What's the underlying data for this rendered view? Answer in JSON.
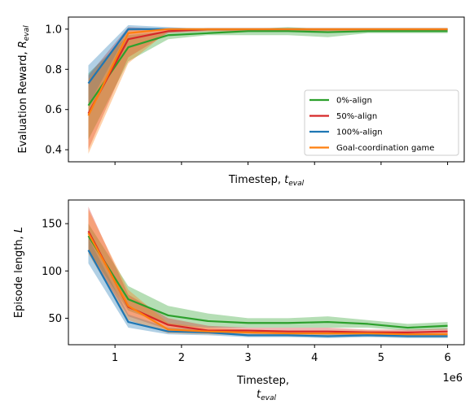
{
  "chart_data": [
    {
      "type": "line",
      "panel": "top",
      "ylabel_main": "Evaluation Reward, ",
      "ylabel_var": "R",
      "ylabel_sub": "eval",
      "xlabel_main": "Timestep, ",
      "xlabel_var": "t",
      "xlabel_sub": "eval",
      "xlim": [
        0.3,
        6.25
      ],
      "ylim": [
        0.34,
        1.06
      ],
      "yticks": [
        0.4,
        0.6,
        0.8,
        1.0
      ],
      "ytick_labels": [
        "0.4",
        "0.6",
        "0.8",
        "1.0"
      ],
      "xticks": [
        1,
        2,
        3,
        4,
        5,
        6
      ],
      "show_xtick_labels": false,
      "grid": false,
      "legend_position": "lower-right",
      "series": [
        {
          "name": "0%-align",
          "color": "#2ca02c",
          "x": [
            0.6,
            1.2,
            1.8,
            2.4,
            3.0,
            3.6,
            4.2,
            4.8,
            5.4,
            6.0
          ],
          "y": [
            0.62,
            0.91,
            0.97,
            0.98,
            0.99,
            0.99,
            0.985,
            0.99,
            0.99,
            0.99
          ],
          "lower": [
            0.45,
            0.84,
            0.95,
            0.97,
            0.97,
            0.97,
            0.96,
            0.98,
            0.98,
            0.98
          ],
          "upper": [
            0.78,
            0.97,
            0.99,
            1.0,
            1.0,
            1.01,
            1.0,
            1.0,
            1.0,
            1.0
          ]
        },
        {
          "name": "50%-align",
          "color": "#d62728",
          "x": [
            0.6,
            1.2,
            1.8,
            2.4,
            3.0,
            3.6,
            4.2,
            4.8,
            5.4,
            6.0
          ],
          "y": [
            0.58,
            0.95,
            0.99,
            1.0,
            1.0,
            1.0,
            1.0,
            1.0,
            1.0,
            1.0
          ],
          "lower": [
            0.4,
            0.86,
            0.98,
            0.99,
            0.99,
            0.99,
            0.99,
            0.99,
            0.99,
            0.99
          ],
          "upper": [
            0.77,
            1.01,
            1.0,
            1.0,
            1.0,
            1.0,
            1.0,
            1.0,
            1.0,
            1.0
          ]
        },
        {
          "name": "100%-align",
          "color": "#1f77b4",
          "x": [
            0.6,
            1.2,
            1.8,
            2.4,
            3.0,
            3.6,
            4.2,
            4.8,
            5.4,
            6.0
          ],
          "y": [
            0.73,
            1.0,
            1.0,
            1.0,
            1.0,
            1.0,
            1.0,
            1.0,
            1.0,
            1.0
          ],
          "lower": [
            0.62,
            0.99,
            1.0,
            1.0,
            1.0,
            1.0,
            1.0,
            1.0,
            1.0,
            1.0
          ],
          "upper": [
            0.82,
            1.02,
            1.01,
            1.0,
            1.0,
            1.0,
            1.0,
            1.0,
            1.0,
            1.0
          ]
        },
        {
          "name": "Goal-coordination game",
          "color": "#ff7f0e",
          "x": [
            0.6,
            1.2,
            1.8,
            2.4,
            3.0,
            3.6,
            4.2,
            4.8,
            5.4,
            6.0
          ],
          "y": [
            0.57,
            0.98,
            1.0,
            1.0,
            1.0,
            1.0,
            1.0,
            1.0,
            1.0,
            1.0
          ],
          "lower": [
            0.38,
            0.83,
            0.99,
            0.99,
            0.99,
            0.99,
            0.99,
            0.99,
            0.99,
            0.99
          ],
          "upper": [
            0.75,
            1.0,
            1.0,
            1.0,
            1.0,
            1.0,
            1.0,
            1.0,
            1.0,
            1.0
          ]
        }
      ]
    },
    {
      "type": "line",
      "panel": "bottom",
      "ylabel_main": "Episode length, ",
      "ylabel_var": "L",
      "xlabel_line1": "Timestep,",
      "xlabel_var": "t",
      "xlabel_sub": "eval",
      "offset_text": "1e6",
      "xlim": [
        0.3,
        6.25
      ],
      "ylim": [
        22,
        175
      ],
      "yticks": [
        50,
        100,
        150
      ],
      "ytick_labels": [
        "50",
        "100",
        "150"
      ],
      "xticks": [
        1,
        2,
        3,
        4,
        5,
        6
      ],
      "xtick_labels": [
        "1",
        "2",
        "3",
        "4",
        "5",
        "6"
      ],
      "show_xtick_labels": true,
      "grid": false,
      "series": [
        {
          "name": "0%-align",
          "color": "#2ca02c",
          "x": [
            0.6,
            1.2,
            1.8,
            2.4,
            3.0,
            3.6,
            4.2,
            4.8,
            5.4,
            6.0
          ],
          "y": [
            137,
            70,
            53,
            47,
            45,
            45,
            46,
            44,
            40,
            42
          ],
          "lower": [
            122,
            58,
            43,
            40,
            40,
            40,
            40,
            40,
            37,
            38
          ],
          "upper": [
            150,
            84,
            63,
            55,
            50,
            50,
            52,
            48,
            44,
            46
          ]
        },
        {
          "name": "50%-align",
          "color": "#d62728",
          "x": [
            0.6,
            1.2,
            1.8,
            2.4,
            3.0,
            3.6,
            4.2,
            4.8,
            5.4,
            6.0
          ],
          "y": [
            142,
            62,
            43,
            37,
            37,
            36,
            36,
            35,
            35,
            36
          ],
          "lower": [
            120,
            52,
            38,
            34,
            34,
            33,
            33,
            32,
            32,
            33
          ],
          "upper": [
            168,
            75,
            50,
            42,
            40,
            40,
            40,
            38,
            38,
            39
          ]
        },
        {
          "name": "100%-align",
          "color": "#1f77b4",
          "x": [
            0.6,
            1.2,
            1.8,
            2.4,
            3.0,
            3.6,
            4.2,
            4.8,
            5.4,
            6.0
          ],
          "y": [
            122,
            46,
            36,
            35,
            32,
            32,
            31,
            32,
            31,
            31
          ],
          "lower": [
            108,
            40,
            33,
            32,
            30,
            30,
            29,
            30,
            29,
            29
          ],
          "upper": [
            135,
            54,
            40,
            38,
            35,
            35,
            34,
            35,
            34,
            34
          ]
        },
        {
          "name": "Goal-coordination game",
          "color": "#ff7f0e",
          "x": [
            0.6,
            1.2,
            1.8,
            2.4,
            3.0,
            3.6,
            4.2,
            4.8,
            5.4,
            6.0
          ],
          "y": [
            140,
            63,
            38,
            36,
            35,
            34,
            34,
            34,
            33,
            33
          ],
          "lower": [
            118,
            48,
            34,
            33,
            32,
            31,
            31,
            31,
            30,
            30
          ],
          "upper": [
            165,
            80,
            45,
            40,
            38,
            37,
            37,
            37,
            36,
            36
          ]
        }
      ]
    }
  ]
}
